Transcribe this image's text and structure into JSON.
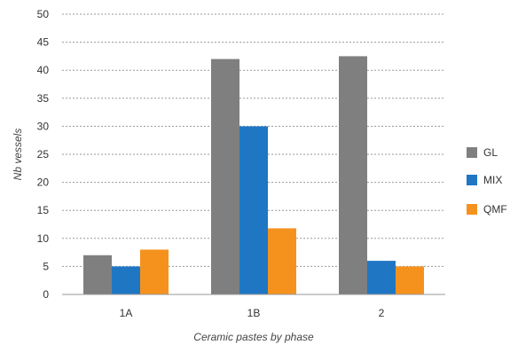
{
  "chart_data": {
    "type": "bar",
    "categories": [
      "1A",
      "1B",
      "2"
    ],
    "series": [
      {
        "name": "GL",
        "values": [
          7,
          42,
          42.5
        ],
        "color": "#7f7f7f"
      },
      {
        "name": "MIX",
        "values": [
          5,
          30,
          6
        ],
        "color": "#1f77c4"
      },
      {
        "name": "QMF",
        "values": [
          8,
          11.8,
          5
        ],
        "color": "#f5921e"
      }
    ],
    "title": "",
    "xlabel": "Ceramic pastes by phase",
    "ylabel": "Nb vessels",
    "ylim": [
      0,
      50
    ],
    "yticks": [
      0,
      5,
      10,
      15,
      20,
      25,
      30,
      35,
      40,
      45,
      50
    ],
    "grid": true,
    "legend_position": "right"
  }
}
